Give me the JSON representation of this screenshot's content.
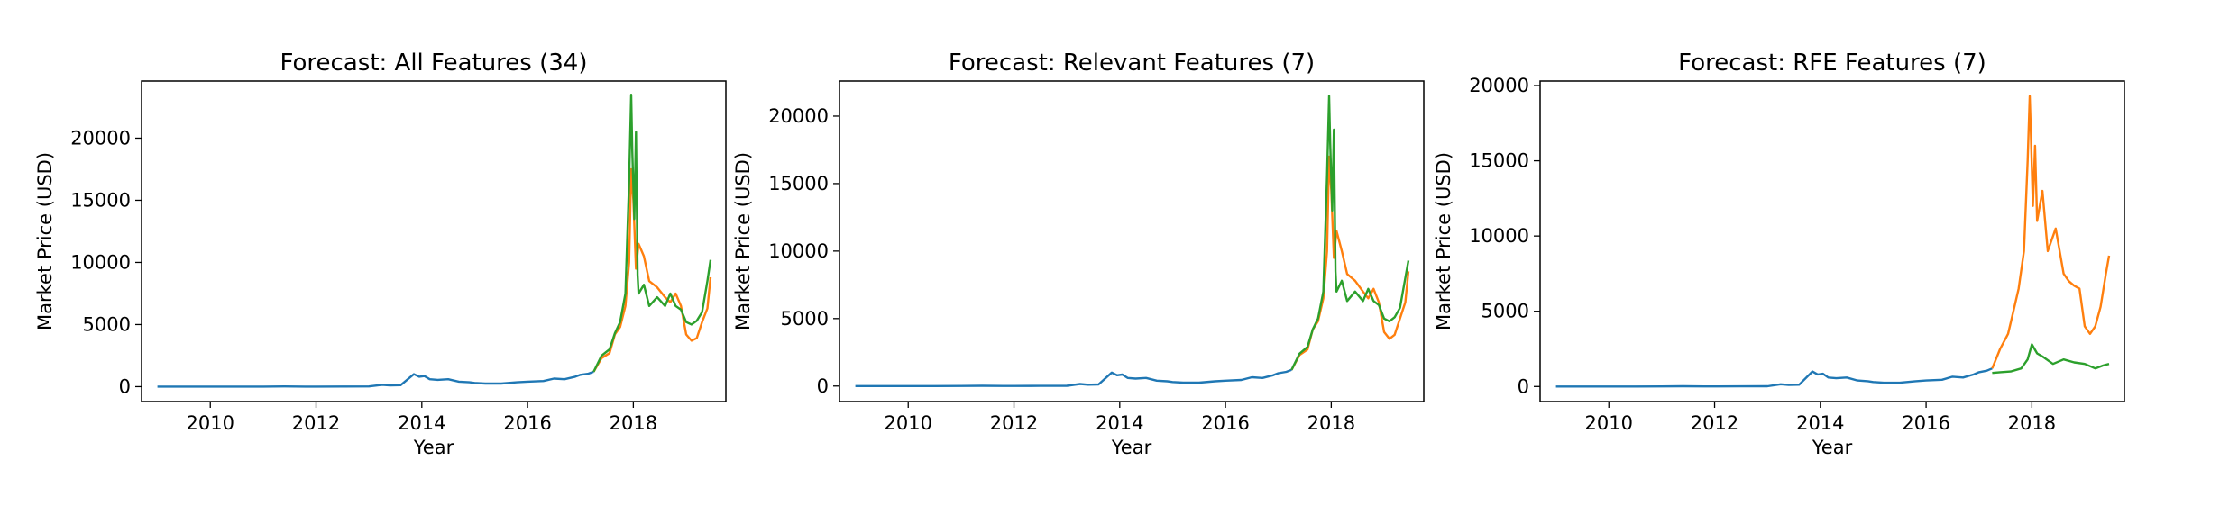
{
  "figure": {
    "background": "#ffffff",
    "series_colors": [
      "#1f77b4",
      "#ff7f0e",
      "#2ca02c"
    ]
  },
  "chart_data": [
    {
      "type": "line",
      "title": "Forecast: All Features (34)",
      "xlabel": "Year",
      "ylabel": "Market Price (USD)",
      "xlim": [
        2008.7,
        2019.75
      ],
      "ylim": [
        -1200,
        24600
      ],
      "xticks": [
        2010,
        2012,
        2014,
        2016,
        2018
      ],
      "yticks": [
        0,
        5000,
        10000,
        15000,
        20000
      ],
      "grid": false,
      "series": [
        {
          "color": "#1f77b4",
          "x": [
            2009.0,
            2010.0,
            2010.5,
            2011.0,
            2011.4,
            2011.8,
            2012.0,
            2012.5,
            2013.0,
            2013.25,
            2013.4,
            2013.6,
            2013.85,
            2013.95,
            2014.05,
            2014.15,
            2014.3,
            2014.5,
            2014.7,
            2014.9,
            2015.0,
            2015.2,
            2015.5,
            2015.8,
            2016.0,
            2016.3,
            2016.5,
            2016.7,
            2016.9,
            2017.0,
            2017.15,
            2017.25
          ],
          "y": [
            0,
            0,
            0,
            5,
            20,
            5,
            5,
            10,
            15,
            150,
            100,
            120,
            1000,
            800,
            850,
            600,
            550,
            600,
            400,
            350,
            300,
            250,
            250,
            350,
            400,
            450,
            650,
            600,
            800,
            950,
            1050,
            1200
          ]
        },
        {
          "color": "#ff7f0e",
          "x": [
            2017.25,
            2017.4,
            2017.55,
            2017.65,
            2017.75,
            2017.85,
            2017.92,
            2017.96,
            2018.0,
            2018.05,
            2018.1,
            2018.2,
            2018.3,
            2018.45,
            2018.6,
            2018.7,
            2018.8,
            2018.9,
            2019.0,
            2019.1,
            2019.2,
            2019.3,
            2019.4,
            2019.46
          ],
          "y": [
            1200,
            2300,
            2700,
            4200,
            4800,
            6500,
            10000,
            17500,
            15000,
            9500,
            11500,
            10500,
            8500,
            8000,
            7200,
            6800,
            7500,
            6500,
            4200,
            3700,
            3900,
            5200,
            6300,
            8800
          ]
        },
        {
          "color": "#2ca02c",
          "x": [
            2017.25,
            2017.4,
            2017.55,
            2017.65,
            2017.75,
            2017.85,
            2017.92,
            2017.96,
            2017.98,
            2018.02,
            2018.05,
            2018.08,
            2018.1,
            2018.2,
            2018.3,
            2018.45,
            2018.6,
            2018.7,
            2018.8,
            2018.9,
            2019.0,
            2019.1,
            2019.2,
            2019.3,
            2019.4,
            2019.46
          ],
          "y": [
            1200,
            2500,
            3000,
            4300,
            5200,
            7500,
            16500,
            23500,
            19000,
            13500,
            20500,
            9000,
            7500,
            8200,
            6500,
            7200,
            6500,
            7500,
            6500,
            6200,
            5200,
            5000,
            5300,
            6000,
            8500,
            10200
          ]
        }
      ]
    },
    {
      "type": "line",
      "title": "Forecast: Relevant Features (7)",
      "xlabel": "Year",
      "ylabel": "Market Price (USD)",
      "xlim": [
        2008.7,
        2019.75
      ],
      "ylim": [
        -1150,
        22600
      ],
      "xticks": [
        2010,
        2012,
        2014,
        2016,
        2018
      ],
      "yticks": [
        0,
        5000,
        10000,
        15000,
        20000
      ],
      "grid": false,
      "series": [
        {
          "color": "#1f77b4",
          "x": [
            2009.0,
            2010.0,
            2010.5,
            2011.0,
            2011.4,
            2011.8,
            2012.0,
            2012.5,
            2013.0,
            2013.25,
            2013.4,
            2013.6,
            2013.85,
            2013.95,
            2014.05,
            2014.15,
            2014.3,
            2014.5,
            2014.7,
            2014.9,
            2015.0,
            2015.2,
            2015.5,
            2015.8,
            2016.0,
            2016.3,
            2016.5,
            2016.7,
            2016.9,
            2017.0,
            2017.15,
            2017.25
          ],
          "y": [
            0,
            0,
            0,
            5,
            20,
            5,
            5,
            10,
            15,
            150,
            100,
            120,
            1000,
            800,
            850,
            600,
            550,
            600,
            400,
            350,
            300,
            250,
            250,
            350,
            400,
            450,
            650,
            600,
            800,
            950,
            1050,
            1200
          ]
        },
        {
          "color": "#ff7f0e",
          "x": [
            2017.25,
            2017.4,
            2017.55,
            2017.65,
            2017.75,
            2017.85,
            2017.92,
            2017.96,
            2018.0,
            2018.05,
            2018.1,
            2018.2,
            2018.3,
            2018.45,
            2018.6,
            2018.7,
            2018.8,
            2018.9,
            2019.0,
            2019.1,
            2019.2,
            2019.3,
            2019.4,
            2019.46
          ],
          "y": [
            1200,
            2300,
            2700,
            4200,
            4800,
            6500,
            10000,
            17000,
            14500,
            9500,
            11500,
            10000,
            8300,
            7800,
            7000,
            6500,
            7200,
            6200,
            4000,
            3500,
            3800,
            5000,
            6200,
            8500
          ]
        },
        {
          "color": "#2ca02c",
          "x": [
            2017.25,
            2017.4,
            2017.55,
            2017.65,
            2017.75,
            2017.85,
            2017.92,
            2017.96,
            2017.98,
            2018.02,
            2018.05,
            2018.08,
            2018.1,
            2018.2,
            2018.3,
            2018.45,
            2018.6,
            2018.7,
            2018.8,
            2018.9,
            2019.0,
            2019.1,
            2019.2,
            2019.3,
            2019.4,
            2019.46
          ],
          "y": [
            1200,
            2400,
            2900,
            4200,
            5000,
            7000,
            15500,
            21500,
            18000,
            13000,
            19000,
            8500,
            7000,
            7800,
            6300,
            7000,
            6300,
            7200,
            6300,
            6000,
            5000,
            4800,
            5100,
            5800,
            8000,
            9300
          ]
        }
      ]
    },
    {
      "type": "line",
      "title": "Forecast: RFE Features (7)",
      "xlabel": "Year",
      "ylabel": "Market Price (USD)",
      "xlim": [
        2008.7,
        2019.75
      ],
      "ylim": [
        -1000,
        20300
      ],
      "xticks": [
        2010,
        2012,
        2014,
        2016,
        2018
      ],
      "yticks": [
        0,
        5000,
        10000,
        15000,
        20000
      ],
      "grid": false,
      "series": [
        {
          "color": "#1f77b4",
          "x": [
            2009.0,
            2010.0,
            2010.5,
            2011.0,
            2011.4,
            2011.8,
            2012.0,
            2012.5,
            2013.0,
            2013.25,
            2013.4,
            2013.6,
            2013.85,
            2013.95,
            2014.05,
            2014.15,
            2014.3,
            2014.5,
            2014.7,
            2014.9,
            2015.0,
            2015.2,
            2015.5,
            2015.8,
            2016.0,
            2016.3,
            2016.5,
            2016.7,
            2016.9,
            2017.0,
            2017.15,
            2017.25
          ],
          "y": [
            0,
            0,
            0,
            5,
            20,
            5,
            5,
            10,
            15,
            150,
            100,
            120,
            1000,
            800,
            850,
            600,
            550,
            600,
            400,
            350,
            300,
            250,
            250,
            350,
            400,
            450,
            650,
            600,
            800,
            950,
            1050,
            1200
          ]
        },
        {
          "color": "#ff7f0e",
          "x": [
            2017.25,
            2017.4,
            2017.55,
            2017.65,
            2017.75,
            2017.85,
            2017.92,
            2017.96,
            2017.98,
            2018.02,
            2018.06,
            2018.1,
            2018.2,
            2018.3,
            2018.45,
            2018.6,
            2018.7,
            2018.8,
            2018.9,
            2019.0,
            2019.1,
            2019.2,
            2019.3,
            2019.4,
            2019.46
          ],
          "y": [
            1200,
            2500,
            3500,
            5000,
            6500,
            9000,
            15000,
            19300,
            17000,
            12000,
            16000,
            11000,
            13000,
            9000,
            10500,
            7500,
            7000,
            6700,
            6500,
            4000,
            3500,
            4000,
            5300,
            7500,
            8700
          ]
        },
        {
          "color": "#2ca02c",
          "x": [
            2017.25,
            2017.4,
            2017.6,
            2017.8,
            2017.92,
            2018.0,
            2018.1,
            2018.2,
            2018.4,
            2018.6,
            2018.8,
            2019.0,
            2019.2,
            2019.35,
            2019.46
          ],
          "y": [
            900,
            950,
            1000,
            1200,
            1800,
            2800,
            2200,
            2000,
            1500,
            1800,
            1600,
            1500,
            1200,
            1400,
            1500
          ]
        }
      ]
    }
  ]
}
